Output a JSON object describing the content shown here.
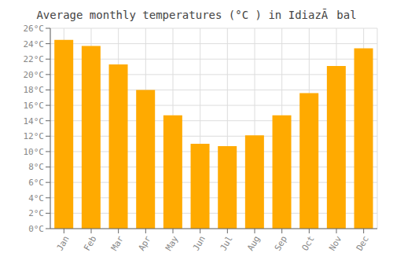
{
  "chart_data": {
    "type": "bar",
    "title": "Average monthly temperatures (°C ) in IdiazÃbal",
    "categories": [
      "Jan",
      "Feb",
      "Mar",
      "Apr",
      "May",
      "Jun",
      "Jul",
      "Aug",
      "Sep",
      "Oct",
      "Nov",
      "Dec"
    ],
    "values": [
      24.5,
      23.7,
      21.3,
      18.0,
      14.7,
      11.0,
      10.7,
      12.1,
      14.7,
      17.6,
      21.1,
      23.4
    ],
    "color": "#FFAA00",
    "ylim": [
      0,
      26
    ],
    "yticks": [
      {
        "value": 0,
        "label": "0°C"
      },
      {
        "value": 2,
        "label": "2°C"
      },
      {
        "value": 4,
        "label": "4°C"
      },
      {
        "value": 6,
        "label": "6°C"
      },
      {
        "value": 8,
        "label": "8°C"
      },
      {
        "value": 10,
        "label": "10°C"
      },
      {
        "value": 12,
        "label": "12°C"
      },
      {
        "value": 14,
        "label": "14°C"
      },
      {
        "value": 16,
        "label": "16°C"
      },
      {
        "value": 18,
        "label": "18°C"
      },
      {
        "value": 20,
        "label": "20°C"
      },
      {
        "value": 22,
        "label": "22°C"
      },
      {
        "value": 24,
        "label": "24°C"
      },
      {
        "value": 26,
        "label": "26°C"
      }
    ],
    "grid": true
  }
}
